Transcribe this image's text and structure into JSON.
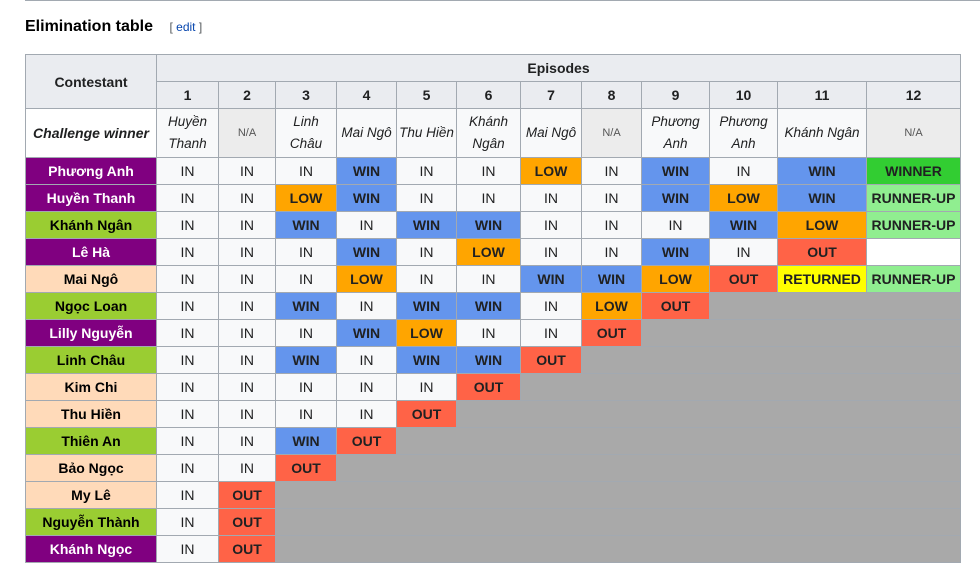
{
  "section": {
    "title": "Elimination table",
    "edit_open": "[ ",
    "edit_label": "edit",
    "edit_close": " ]"
  },
  "table": {
    "contestant_header": "Contestant",
    "episodes_header": "Episodes",
    "episodes": [
      "1",
      "2",
      "3",
      "4",
      "5",
      "6",
      "7",
      "8",
      "9",
      "10",
      "11",
      "12"
    ],
    "challenge_label": "Challenge winner",
    "challenge_winners": [
      "Huyền Thanh",
      "N/A",
      "Linh Châu",
      "Mai Ngô",
      "Thu Hiền",
      "Khánh Ngân",
      "Mai Ngô",
      "N/A",
      "Phương Anh",
      "Phương Anh",
      "Khánh Ngân",
      "N/A"
    ],
    "contestants": [
      {
        "name": "Phương Anh",
        "color": "#800080",
        "text_color": "#ffffff",
        "results": [
          "IN",
          "IN",
          "IN",
          "WIN",
          "IN",
          "IN",
          "LOW",
          "IN",
          "WIN",
          "IN",
          "WIN",
          "WINNER"
        ]
      },
      {
        "name": "Huyền Thanh",
        "color": "#800080",
        "text_color": "#ffffff",
        "results": [
          "IN",
          "IN",
          "LOW",
          "WIN",
          "IN",
          "IN",
          "IN",
          "IN",
          "WIN",
          "LOW",
          "WIN",
          "RUNNER-UP"
        ]
      },
      {
        "name": "Khánh Ngân",
        "color": "#9acd32",
        "text_color": "#000000",
        "results": [
          "IN",
          "IN",
          "WIN",
          "IN",
          "WIN",
          "WIN",
          "IN",
          "IN",
          "IN",
          "WIN",
          "LOW",
          "RUNNER-UP"
        ]
      },
      {
        "name": "Lê Hà",
        "color": "#800080",
        "text_color": "#ffffff",
        "results": [
          "IN",
          "IN",
          "IN",
          "WIN",
          "IN",
          "LOW",
          "IN",
          "IN",
          "WIN",
          "IN",
          "OUT",
          ""
        ]
      },
      {
        "name": "Mai Ngô",
        "color": "#ffdab9",
        "text_color": "#000000",
        "results": [
          "IN",
          "IN",
          "IN",
          "LOW",
          "IN",
          "IN",
          "WIN",
          "WIN",
          "LOW",
          "OUT",
          "RETURNED",
          "RUNNER-UP"
        ]
      },
      {
        "name": "Ngọc Loan",
        "color": "#9acd32",
        "text_color": "#000000",
        "results": [
          "IN",
          "IN",
          "WIN",
          "IN",
          "WIN",
          "WIN",
          "IN",
          "LOW",
          "OUT"
        ]
      },
      {
        "name": "Lilly Nguyễn",
        "color": "#800080",
        "text_color": "#ffffff",
        "results": [
          "IN",
          "IN",
          "IN",
          "WIN",
          "LOW",
          "IN",
          "IN",
          "OUT"
        ]
      },
      {
        "name": "Linh Châu",
        "color": "#9acd32",
        "text_color": "#000000",
        "results": [
          "IN",
          "IN",
          "WIN",
          "IN",
          "WIN",
          "WIN",
          "OUT"
        ]
      },
      {
        "name": "Kim Chi",
        "color": "#ffdab9",
        "text_color": "#000000",
        "results": [
          "IN",
          "IN",
          "IN",
          "IN",
          "IN",
          "OUT"
        ]
      },
      {
        "name": "Thu Hiền",
        "color": "#ffdab9",
        "text_color": "#000000",
        "results": [
          "IN",
          "IN",
          "IN",
          "IN",
          "OUT"
        ]
      },
      {
        "name": "Thiên An",
        "color": "#9acd32",
        "text_color": "#000000",
        "results": [
          "IN",
          "IN",
          "WIN",
          "OUT"
        ]
      },
      {
        "name": "Bảo Ngọc",
        "color": "#ffdab9",
        "text_color": "#000000",
        "results": [
          "IN",
          "IN",
          "OUT"
        ]
      },
      {
        "name": "My Lê",
        "color": "#ffdab9",
        "text_color": "#000000",
        "results": [
          "IN",
          "OUT"
        ]
      },
      {
        "name": "Nguyễn Thành",
        "color": "#9acd32",
        "text_color": "#000000",
        "results": [
          "IN",
          "OUT"
        ]
      },
      {
        "name": "Khánh Ngọc",
        "color": "#800080",
        "text_color": "#ffffff",
        "results": [
          "IN",
          "OUT"
        ]
      }
    ]
  }
}
